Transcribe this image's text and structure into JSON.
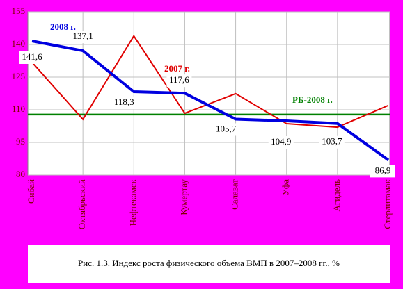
{
  "chart_data": {
    "type": "line",
    "caption": "Рис. 1.3. Индекс роста физического объема ВМП в 2007–2008 гг., %",
    "categories": [
      "Сибай",
      "Октябрьский",
      "Нефтекамск",
      "Кумертау",
      "Салават",
      "Уфа",
      "Агидель",
      "Стерлитамак"
    ],
    "series": [
      {
        "name": "2007 г.",
        "color": "#e00000",
        "values": [
          131.8,
          105.6,
          143.9,
          108.4,
          117.4,
          103.6,
          102,
          112
        ]
      },
      {
        "name": "2008 г.",
        "color": "#0000e0",
        "values": [
          141.6,
          137.1,
          118.3,
          117.6,
          105.7,
          104.9,
          103.7,
          86.9
        ],
        "value_labels": [
          "141,6",
          "137,1",
          "118,3",
          "117,6",
          "105,7",
          "104,9",
          "103,7",
          "86,9"
        ]
      }
    ],
    "reference_lines": [
      {
        "name": "РБ-2008 г.",
        "color": "#008000",
        "value": 107.8
      }
    ],
    "ylim": [
      80,
      155
    ],
    "yticks": [
      80,
      95,
      110,
      125,
      140,
      155
    ],
    "grid": true
  }
}
